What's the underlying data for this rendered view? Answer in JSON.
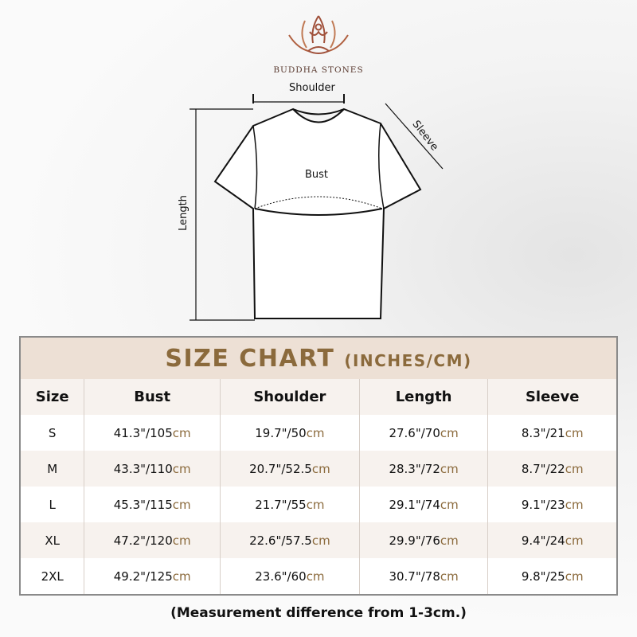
{
  "brand": "BUDDHA STONES",
  "diagram": {
    "shoulder": "Shoulder",
    "sleeve": "Sleeve",
    "bust": "Bust",
    "length": "Length"
  },
  "chart": {
    "title": "SIZE CHART",
    "unit": "(INCHES/CM)",
    "headers": [
      "Size",
      "Bust",
      "Shoulder",
      "Length",
      "Sleeve"
    ],
    "rows": [
      [
        "S",
        [
          "41.3\"/105",
          "cm"
        ],
        [
          "19.7\"/50",
          "cm"
        ],
        [
          "27.6\"/70",
          "cm"
        ],
        [
          "8.3\"/21",
          "cm"
        ]
      ],
      [
        "M",
        [
          "43.3\"/110",
          "cm"
        ],
        [
          "20.7\"/52.5",
          "cm"
        ],
        [
          "28.3\"/72",
          "cm"
        ],
        [
          "8.7\"/22",
          "cm"
        ]
      ],
      [
        "L",
        [
          "45.3\"/115",
          "cm"
        ],
        [
          "21.7\"/55",
          "cm"
        ],
        [
          "29.1\"/74",
          "cm"
        ],
        [
          "9.1\"/23",
          "cm"
        ]
      ],
      [
        "XL",
        [
          "47.2\"/120",
          "cm"
        ],
        [
          "22.6\"/57.5",
          "cm"
        ],
        [
          "29.9\"/76",
          "cm"
        ],
        [
          "9.4\"/24",
          "cm"
        ]
      ],
      [
        "2XL",
        [
          "49.2\"/125",
          "cm"
        ],
        [
          "23.6\"/60",
          "cm"
        ],
        [
          "30.7\"/78",
          "cm"
        ],
        [
          "9.8\"/25",
          "cm"
        ]
      ]
    ]
  },
  "note": "(Measurement difference from 1-3cm.)",
  "colors": {
    "accent": "#8b6a3c",
    "title_band": "#ede0d5",
    "logo": "#a0503a"
  }
}
